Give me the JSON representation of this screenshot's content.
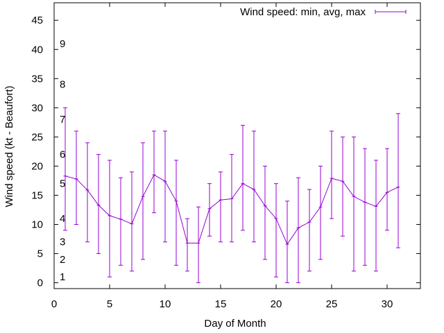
{
  "chart_data": {
    "type": "line",
    "xlabel": "Day of Month",
    "ylabel": "Wind speed (kt - Beaufort)",
    "xlim": [
      0,
      33
    ],
    "ylim": [
      -1,
      48
    ],
    "xticks": [
      0,
      5,
      10,
      15,
      20,
      25,
      30
    ],
    "yticks": [
      0,
      5,
      10,
      15,
      20,
      25,
      30,
      35,
      40,
      45
    ],
    "grid": false,
    "legend_position": "top-right",
    "series_color": "#9400d3",
    "beaufort_labels": [
      {
        "label": "1",
        "kt": 1
      },
      {
        "label": "2",
        "kt": 4
      },
      {
        "label": "3",
        "kt": 7
      },
      {
        "label": "4",
        "kt": 11
      },
      {
        "label": "5",
        "kt": 17
      },
      {
        "label": "6",
        "kt": 22
      },
      {
        "label": "7",
        "kt": 28
      },
      {
        "label": "8",
        "kt": 34
      },
      {
        "label": "9",
        "kt": 41
      }
    ],
    "series": [
      {
        "name": "Wind speed: min, avg, max",
        "x": [
          1,
          2,
          3,
          4,
          5,
          6,
          7,
          8,
          9,
          10,
          11,
          12,
          13,
          14,
          15,
          16,
          17,
          18,
          19,
          20,
          21,
          22,
          23,
          24,
          25,
          26,
          27,
          28,
          29,
          30,
          31
        ],
        "avg": [
          18.3,
          17.8,
          15.9,
          13.3,
          11.5,
          10.9,
          10.1,
          14.8,
          18.5,
          17.4,
          14.0,
          6.8,
          6.8,
          12.7,
          14.2,
          14.4,
          17.0,
          16.0,
          13.2,
          11.0,
          6.6,
          9.4,
          10.4,
          13.0,
          17.9,
          17.4,
          14.8,
          13.8,
          13.1,
          15.5,
          16.4
        ],
        "min": [
          9,
          10,
          7,
          5,
          1,
          3,
          2,
          4,
          12,
          7,
          3,
          2,
          0,
          8,
          7,
          7,
          9,
          7,
          4,
          1,
          0,
          0,
          2,
          4,
          11,
          8,
          2,
          3,
          2,
          9,
          6
        ],
        "max": [
          30,
          26,
          24,
          22,
          21,
          18,
          19,
          24,
          26,
          26,
          21,
          11,
          13,
          17,
          19,
          22,
          27,
          26,
          20,
          17,
          14,
          18,
          16,
          20,
          26,
          25,
          25,
          23,
          21,
          23,
          29
        ]
      }
    ]
  }
}
